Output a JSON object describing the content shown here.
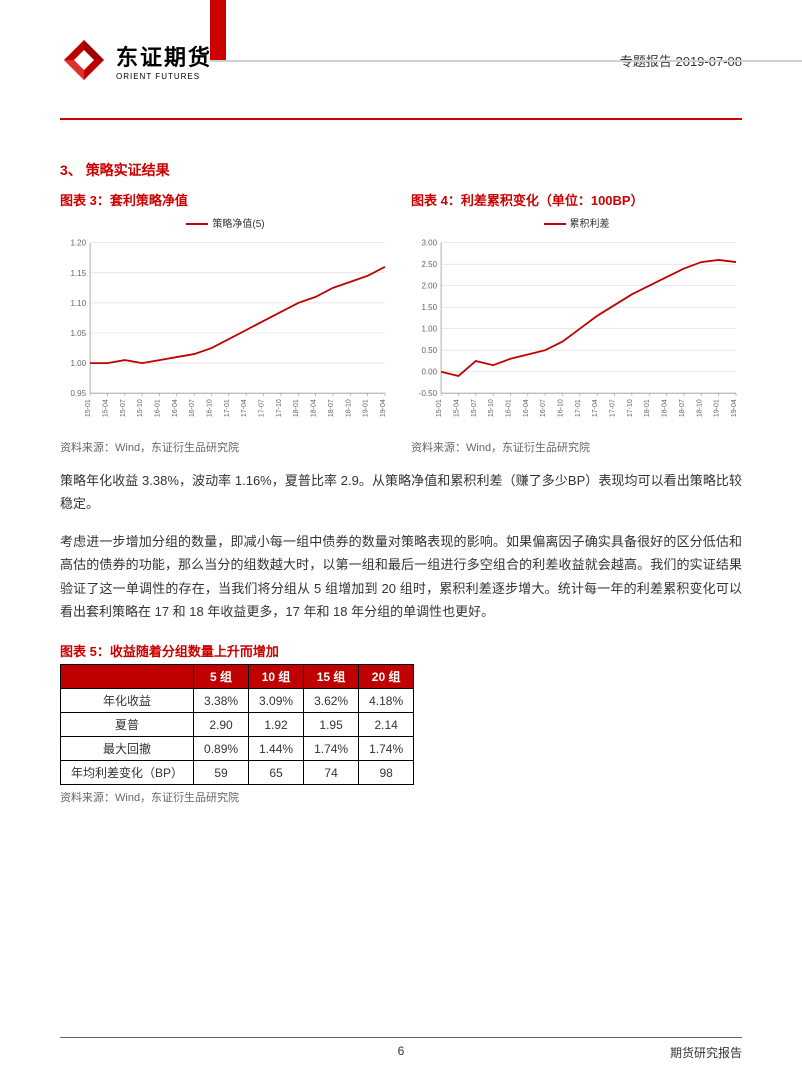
{
  "header": {
    "logo_cn": "东证期货",
    "logo_en": "ORIENT FUTURES",
    "right_text": "专题报告 2019-07-08",
    "stripe_color": "#cc0000"
  },
  "section": {
    "number": "3、",
    "title": "策略实证结果"
  },
  "chart3": {
    "title": "图表 3：套利策略净值",
    "legend": "策略净值(5)",
    "type": "line",
    "line_color": "#c00000",
    "background_color": "#ffffff",
    "grid_color": "#d9d9d9",
    "x_labels": [
      "15-01",
      "15-04",
      "15-07",
      "15-10",
      "16-01",
      "16-04",
      "16-07",
      "16-10",
      "17-01",
      "17-04",
      "17-07",
      "17-10",
      "18-01",
      "18-04",
      "18-07",
      "18-10",
      "19-01",
      "19-04"
    ],
    "ylim": [
      0.95,
      1.2
    ],
    "ytick_step": 0.05,
    "values": [
      1.0,
      1.0,
      1.005,
      1.0,
      1.005,
      1.01,
      1.015,
      1.025,
      1.04,
      1.055,
      1.07,
      1.085,
      1.1,
      1.11,
      1.125,
      1.135,
      1.145,
      1.16
    ],
    "source": "资料来源：Wind，东证衍生品研究院"
  },
  "chart4": {
    "title": "图表 4：利差累积变化（单位：100BP）",
    "legend": "累积利差",
    "type": "line",
    "line_color": "#c00000",
    "background_color": "#ffffff",
    "grid_color": "#d9d9d9",
    "x_labels": [
      "15-01",
      "15-04",
      "15-07",
      "15-10",
      "16-01",
      "16-04",
      "16-07",
      "16-10",
      "17-01",
      "17-04",
      "17-07",
      "17-10",
      "18-01",
      "18-04",
      "18-07",
      "18-10",
      "19-01",
      "19-04"
    ],
    "ylim": [
      -0.5,
      3.0
    ],
    "ytick_step": 0.5,
    "values": [
      0.0,
      -0.1,
      0.25,
      0.15,
      0.3,
      0.4,
      0.5,
      0.7,
      1.0,
      1.3,
      1.55,
      1.8,
      2.0,
      2.2,
      2.4,
      2.55,
      2.6,
      2.55
    ],
    "source": "资料来源：Wind，东证衍生品研究院"
  },
  "para1": "策略年化收益 3.38%，波动率 1.16%，夏普比率 2.9。从策略净值和累积利差（赚了多少BP）表现均可以看出策略比较稳定。",
  "para2": "考虑进一步增加分组的数量，即减小每一组中债券的数量对策略表现的影响。如果偏离因子确实具备很好的区分低估和高估的债券的功能，那么当分的组数越大时，以第一组和最后一组进行多空组合的利差收益就会越高。我们的实证结果验证了这一单调性的存在，当我们将分组从 5 组增加到 20 组时，累积利差逐步增大。统计每一年的利差累积变化可以看出套利策略在 17 和 18 年收益更多，17 年和 18 年分组的单调性也更好。",
  "table5": {
    "title": "图表 5：收益随着分组数量上升而增加",
    "header_bg": "#c00000",
    "header_fg": "#ffffff",
    "columns": [
      "",
      "5 组",
      "10 组",
      "15 组",
      "20 组"
    ],
    "rows": [
      [
        "年化收益",
        "3.38%",
        "3.09%",
        "3.62%",
        "4.18%"
      ],
      [
        "夏普",
        "2.90",
        "1.92",
        "1.95",
        "2.14"
      ],
      [
        "最大回撤",
        "0.89%",
        "1.44%",
        "1.74%",
        "1.74%"
      ],
      [
        "年均利差变化（BP）",
        "59",
        "65",
        "74",
        "98"
      ]
    ],
    "source": "资料来源：Wind，东证衍生品研究院"
  },
  "footer": {
    "page": "6",
    "right": "期货研究报告"
  }
}
